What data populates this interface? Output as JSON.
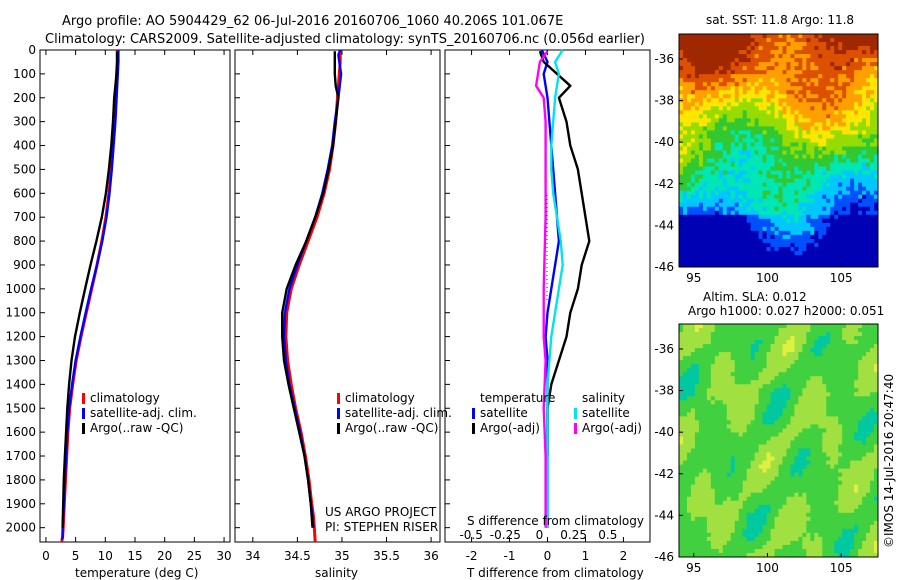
{
  "header": {
    "line1": "Argo profile: AO 5904429_62 06-Jul-2016 20160706_1060 40.206S 101.067E",
    "line2": "Climatology: CARS2009. Satellite-adjusted climatology: synTS_20160706.nc (0.056d earlier)"
  },
  "credit": "©IMOS 14-Jul-2016 20:47:40",
  "project": [
    "US ARGO PROJECT",
    "PI: STEPHEN RISER"
  ],
  "depth_axis": {
    "ticks": [
      0,
      100,
      200,
      300,
      400,
      500,
      600,
      700,
      800,
      900,
      1000,
      1100,
      1200,
      1300,
      1400,
      1500,
      1600,
      1700,
      1800,
      1900,
      2000
    ],
    "ylim": [
      2060,
      0
    ]
  },
  "chart_data": [
    {
      "type": "line",
      "xlabel": "temperature (deg C)",
      "xlim": [
        -1,
        31
      ],
      "xticks": [
        0,
        5,
        10,
        15,
        20,
        25,
        30
      ],
      "legend": [
        "climatology",
        "satellite-adj. clim.",
        "Argo(..raw -QC)"
      ],
      "legend_position": "bottom-center",
      "series": [
        {
          "name": "climatology",
          "color": "#ff0000",
          "x": [
            12.0,
            12.0,
            11.9,
            11.8,
            11.7,
            11.5,
            11.3,
            11.0,
            10.6,
            10.1,
            9.4,
            8.6,
            7.7,
            6.8,
            5.9,
            5.1,
            4.5,
            4.0,
            3.7,
            3.5,
            3.3,
            3.1,
            3.0,
            2.9,
            2.8,
            2.7,
            2.7
          ],
          "y": [
            0,
            50,
            100,
            150,
            200,
            300,
            400,
            500,
            600,
            700,
            800,
            900,
            1000,
            1100,
            1200,
            1300,
            1400,
            1500,
            1600,
            1700,
            1800,
            1900,
            1950,
            2000,
            2040,
            2050,
            2060
          ]
        },
        {
          "name": "satellite-adj. clim.",
          "color": "#0000ff",
          "x": [
            12.2,
            12.2,
            12.1,
            12.0,
            11.9,
            11.7,
            11.4,
            11.1,
            10.7,
            10.2,
            9.5,
            8.6,
            7.6,
            6.7,
            5.8,
            5.0,
            4.4,
            3.9,
            3.6,
            3.4,
            3.2,
            3.0,
            2.9,
            2.8,
            2.8,
            2.7
          ],
          "y": [
            0,
            50,
            100,
            150,
            200,
            300,
            400,
            500,
            600,
            700,
            800,
            900,
            1000,
            1100,
            1200,
            1300,
            1400,
            1500,
            1600,
            1700,
            1800,
            1900,
            1950,
            2000,
            2040,
            2050
          ]
        },
        {
          "name": "Argo(..raw -QC)",
          "color": "#000000",
          "x": [
            12.0,
            12.0,
            11.9,
            11.7,
            11.5,
            11.3,
            11.0,
            10.6,
            10.1,
            9.4,
            8.5,
            7.5,
            6.6,
            5.7,
            4.9,
            4.3,
            3.9,
            3.6,
            3.4,
            3.2,
            3.0,
            2.9,
            2.8
          ],
          "y": [
            5,
            50,
            100,
            150,
            200,
            300,
            400,
            500,
            600,
            700,
            800,
            900,
            1000,
            1100,
            1200,
            1300,
            1400,
            1500,
            1600,
            1700,
            1800,
            1900,
            2000
          ]
        }
      ]
    },
    {
      "type": "line",
      "xlabel": "salinity",
      "xlim": [
        33.8,
        36.1
      ],
      "xticks": [
        34,
        34.5,
        35,
        35.5,
        36
      ],
      "legend": [
        "climatology",
        "satellite-adj. clim.",
        "Argo(..raw -QC)"
      ],
      "legend_position": "bottom-right",
      "series": [
        {
          "name": "climatology",
          "color": "#ff0000",
          "x": [
            34.98,
            34.98,
            34.97,
            34.96,
            34.95,
            34.93,
            34.9,
            34.86,
            34.8,
            34.72,
            34.62,
            34.52,
            34.43,
            34.38,
            34.37,
            34.39,
            34.43,
            34.48,
            34.54,
            34.59,
            34.63,
            34.66,
            34.68,
            34.69,
            34.7
          ],
          "y": [
            0,
            50,
            100,
            150,
            200,
            300,
            400,
            500,
            600,
            700,
            800,
            900,
            1000,
            1100,
            1200,
            1300,
            1400,
            1500,
            1600,
            1700,
            1800,
            1900,
            1950,
            2000,
            2060
          ]
        },
        {
          "name": "satellite-adj. clim.",
          "color": "#0000ff",
          "x": [
            34.98,
            34.96,
            34.97,
            34.99,
            34.96,
            34.92,
            34.89,
            34.84,
            34.78,
            34.7,
            34.6,
            34.5,
            34.41,
            34.36,
            34.35,
            34.37,
            34.41,
            34.47,
            34.53,
            34.58,
            34.62,
            34.65,
            34.67,
            34.68
          ],
          "y": [
            0,
            20,
            50,
            100,
            200,
            300,
            400,
            500,
            600,
            700,
            800,
            900,
            1000,
            1100,
            1200,
            1300,
            1400,
            1500,
            1600,
            1700,
            1800,
            1900,
            1950,
            2000
          ]
        },
        {
          "name": "Argo(..raw -QC)",
          "color": "#000000",
          "x": [
            34.92,
            34.92,
            34.92,
            34.93,
            34.96,
            34.93,
            34.9,
            34.85,
            34.79,
            34.7,
            34.6,
            34.48,
            34.38,
            34.33,
            34.33,
            34.35,
            34.4,
            34.46,
            34.52,
            34.58,
            34.62,
            34.65,
            34.67
          ],
          "y": [
            5,
            50,
            100,
            150,
            200,
            300,
            400,
            500,
            600,
            700,
            800,
            900,
            1000,
            1100,
            1200,
            1300,
            1400,
            1500,
            1600,
            1700,
            1800,
            1900,
            2000
          ]
        }
      ]
    },
    {
      "type": "line",
      "title": "S difference from climatology",
      "xlabel": "T difference from climatology",
      "xlim": [
        -2.7,
        2.7
      ],
      "xticks": [
        -2,
        -1,
        0,
        1,
        2
      ],
      "top_xticks": [
        -0.5,
        -0.25,
        0,
        0.25,
        0.5
      ],
      "legend_temperature_header": "temperature",
      "legend_salinity_header": "salinity",
      "legend": [
        "satellite",
        "Argo(-adj)",
        "satellite",
        "Argo(-adj)"
      ],
      "legend_position": "bottom-center",
      "series": [
        {
          "name": "satellite",
          "color": "#0000ff",
          "x": [
            -0.15,
            0.0,
            -0.1,
            -0.05,
            0.0,
            0.05,
            0.1,
            0.15,
            0.2,
            0.25,
            0.3,
            0.2,
            0.1,
            0.0,
            -0.05,
            0.0,
            0.0,
            0.0,
            0.0,
            0.0,
            0.0,
            0.0
          ],
          "y": [
            0,
            50,
            100,
            150,
            200,
            300,
            400,
            500,
            600,
            700,
            800,
            900,
            1000,
            1100,
            1200,
            1300,
            1400,
            1500,
            1600,
            1700,
            1800,
            2000
          ]
        },
        {
          "name": "Argo(-adj)",
          "color": "#000000",
          "x": [
            -0.2,
            -0.1,
            0.6,
            0.3,
            0.5,
            0.6,
            0.8,
            0.9,
            1.0,
            1.1,
            0.9,
            0.8,
            0.6,
            0.5,
            0.3,
            0.1,
            0.0,
            0.0,
            0.0
          ],
          "y": [
            5,
            50,
            150,
            200,
            300,
            400,
            500,
            600,
            700,
            800,
            900,
            1000,
            1100,
            1200,
            1300,
            1400,
            1500,
            1600,
            1700
          ]
        },
        {
          "name": "satellite",
          "color": "#00e5e5",
          "x": [
            0.4,
            0.2,
            0.3,
            0.25,
            0.2,
            0.15,
            0.1,
            0.1,
            0.15,
            0.25,
            0.35,
            0.4,
            0.3,
            0.2,
            0.1,
            0.05,
            0.0,
            0.0,
            0.0
          ],
          "y": [
            0,
            50,
            100,
            150,
            200,
            300,
            400,
            500,
            600,
            700,
            800,
            900,
            1000,
            1100,
            1200,
            1300,
            1400,
            1700,
            2000
          ]
        },
        {
          "name": "Argo(-adj)",
          "color": "#ff00ff",
          "x": [
            0.0,
            -0.2,
            -0.3,
            -0.1,
            -0.05,
            -0.05,
            -0.1,
            -0.1,
            -0.05,
            -0.1,
            -0.05,
            -0.05,
            -0.05
          ],
          "y": [
            5,
            50,
            150,
            200,
            300,
            700,
            1000,
            1200,
            1300,
            1500,
            1700,
            1900,
            2000
          ]
        }
      ]
    },
    {
      "type": "heatmap",
      "title": "sat. SST: 11.8  Argo: 11.8",
      "xlim": [
        94,
        107.5
      ],
      "ylim": [
        -46,
        -34.8
      ],
      "xticks": [
        95,
        100,
        105
      ],
      "yticks": [
        -36,
        -38,
        -40,
        -42,
        -44,
        -46
      ],
      "palette": [
        "#0000b4",
        "#0050ff",
        "#00c8ff",
        "#00e6b4",
        "#32c832",
        "#96dc00",
        "#ffe600",
        "#ffa000",
        "#dc5000",
        "#a02800"
      ]
    },
    {
      "type": "heatmap",
      "title": "Altim. SLA: 0.012",
      "subtitle": "Argo h1000: 0.027 h2000: 0.051",
      "xlim": [
        94,
        107.5
      ],
      "ylim": [
        -46,
        -34.8
      ],
      "xticks": [
        95,
        100,
        105
      ],
      "yticks": [
        -36,
        -38,
        -40,
        -42,
        -44,
        -46
      ],
      "palette": [
        "#00c8a0",
        "#40d040",
        "#a0e040",
        "#e0f040"
      ]
    }
  ]
}
